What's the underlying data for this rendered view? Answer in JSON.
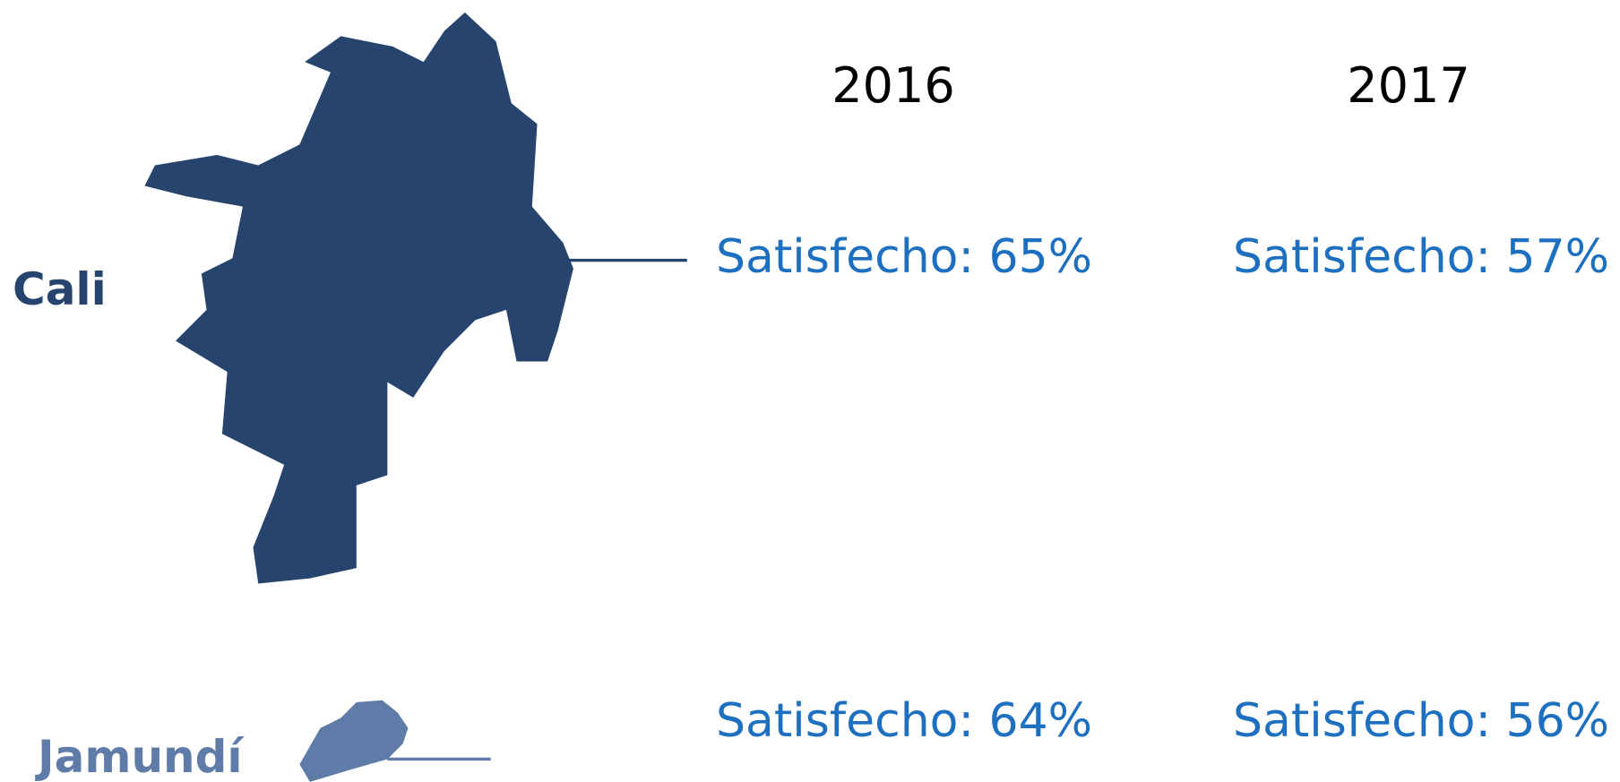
{
  "columns": [
    "2016",
    "2017"
  ],
  "rows": [
    {
      "name": "Cali",
      "values": [
        "Satisfecho: 65%",
        "Satisfecho: 57%"
      ]
    },
    {
      "name": "Jamundí",
      "values": [
        "Satisfecho: 64%",
        "Satisfecho: 56%"
      ]
    }
  ]
}
